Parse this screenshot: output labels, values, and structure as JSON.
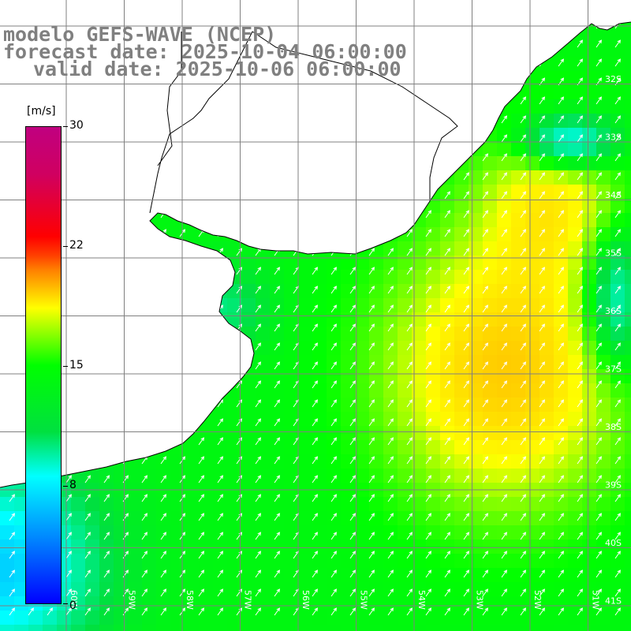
{
  "title": {
    "model": "modelo GEFS-WAVE (NCEP)",
    "forecast": "forecast date: 2025-10-04 06:00:00",
    "valid": "valid date: 2025-10-06 06:00:00"
  },
  "colorbar": {
    "unit": "[m/s]",
    "ticks": [
      "30",
      "22",
      "15",
      "8",
      "0"
    ],
    "tick_values": [
      30,
      22,
      15,
      8,
      0
    ],
    "colors": [
      "#0000ff",
      "#00ffff",
      "#00ff00",
      "#ffff00",
      "#ff0000",
      "#c00080"
    ]
  },
  "lat_labels": [
    "32S",
    "33S",
    "34S",
    "35S",
    "36S",
    "37S",
    "38S",
    "39S",
    "40S",
    "41S"
  ],
  "lon_labels": [
    "60W",
    "59W",
    "58W",
    "57W",
    "56W",
    "55W",
    "54W",
    "53W",
    "52W",
    "51W"
  ],
  "map": {
    "land_color": "#ffffff",
    "grid_color": "#808080",
    "coast_color": "#000000",
    "arrow_color": "#ffffff"
  }
}
